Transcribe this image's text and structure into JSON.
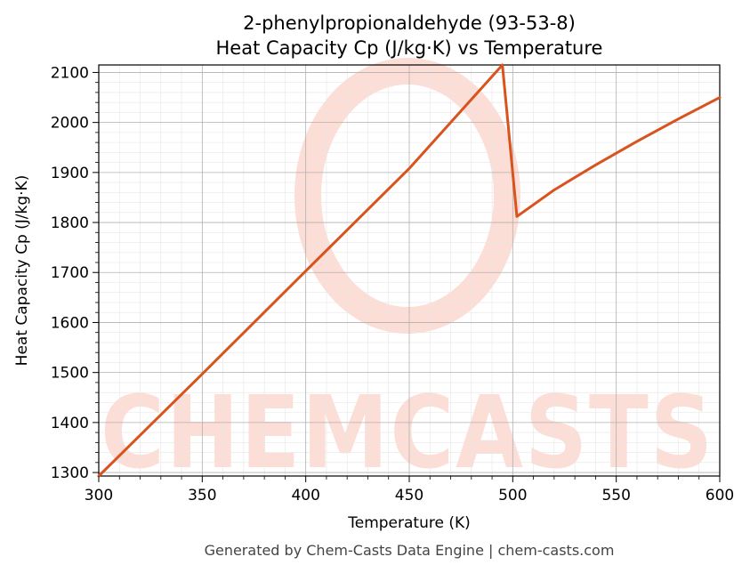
{
  "watermark": {
    "text": "CHEMCASTS",
    "color": "#fbd3c9"
  },
  "footer": "Generated by Chem-Casts Data Engine | chem-casts.com",
  "chart_data": {
    "type": "line",
    "title_line1": "2-phenylpropionaldehyde (93-53-8)",
    "title_line2": "Heat Capacity Cp (J/kg·K) vs Temperature",
    "xlabel": "Temperature (K)",
    "ylabel": "Heat Capacity Cp (J/kg·K)",
    "xlim": [
      300,
      600
    ],
    "ylim": [
      1293,
      2115
    ],
    "xticks": [
      300,
      350,
      400,
      450,
      500,
      550,
      600
    ],
    "yticks": [
      1300,
      1400,
      1500,
      1600,
      1700,
      1800,
      1900,
      2000,
      2100
    ],
    "grid": true,
    "line_color": "#d9531e",
    "series": [
      {
        "x": [
          300,
          350,
          400,
          450,
          495,
          502,
          520,
          540,
          560,
          580,
          600
        ],
        "y": [
          1293,
          1497,
          1703,
          1908,
          2115,
          1812,
          1865,
          1915,
          1962,
          2007,
          2050
        ]
      }
    ]
  }
}
